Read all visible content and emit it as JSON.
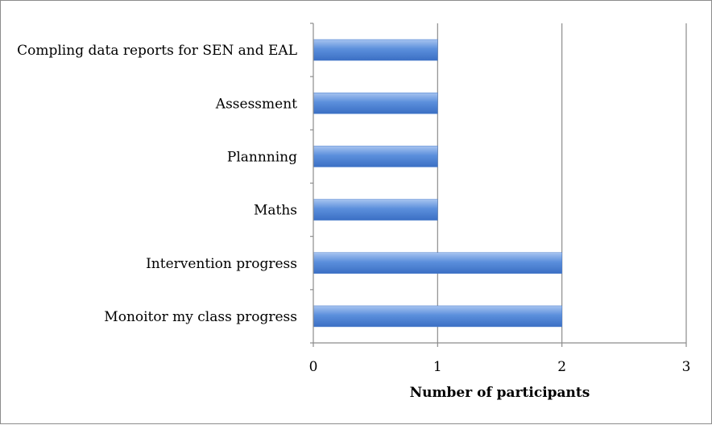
{
  "chart_data": {
    "type": "bar",
    "orientation": "horizontal",
    "title": "",
    "xlabel": "Number of participants",
    "ylabel": "",
    "xlim": [
      0,
      3
    ],
    "x_ticks": [
      "0",
      "1",
      "2",
      "3"
    ],
    "grid": "vertical",
    "legend": "none",
    "categories": [
      "Compling data reports for SEN and EAL",
      "Assessment",
      "Plannning",
      "Maths",
      "Intervention progress",
      "Monoitor my class progress"
    ],
    "values": [
      1,
      1,
      1,
      1,
      2,
      2
    ],
    "bar_color": "#5b8fdc",
    "bar_color_light": "#a7c4f0",
    "bar_color_dark": "#3b6fc4"
  }
}
